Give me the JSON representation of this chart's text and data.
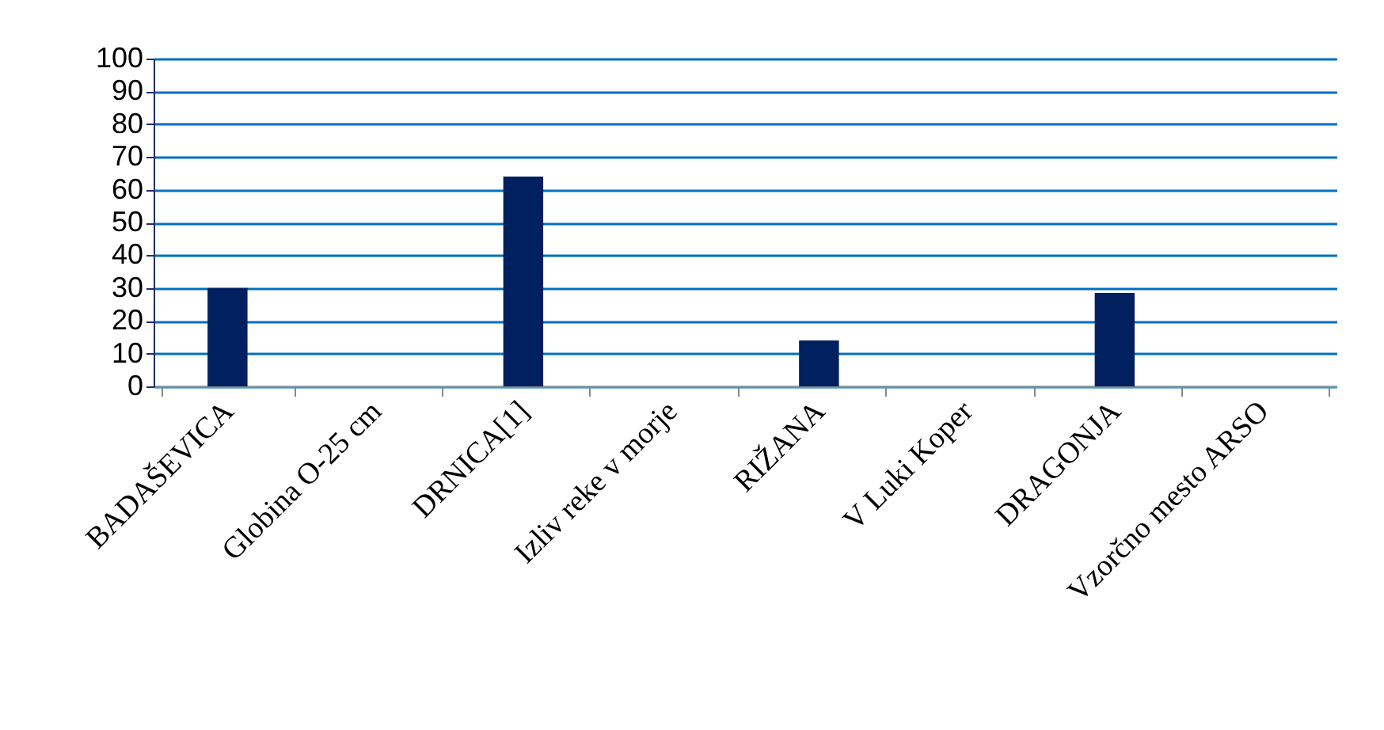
{
  "chart_data": {
    "type": "bar",
    "categories": [
      "BADAŠEVICA",
      "Globina O-25 cm",
      "DRNICA[1]",
      "Izliv reke v morje",
      "RIŽANA",
      "V Luki Koper",
      "DRAGONJA",
      "Vzorčno mesto ARSO"
    ],
    "values": [
      30,
      null,
      64,
      null,
      14,
      null,
      28.5,
      null
    ],
    "color": "#002060",
    "ylim": [
      0,
      100
    ],
    "yticks": [
      0,
      10,
      20,
      30,
      40,
      50,
      60,
      70,
      80,
      90,
      100
    ],
    "grid": "y"
  }
}
